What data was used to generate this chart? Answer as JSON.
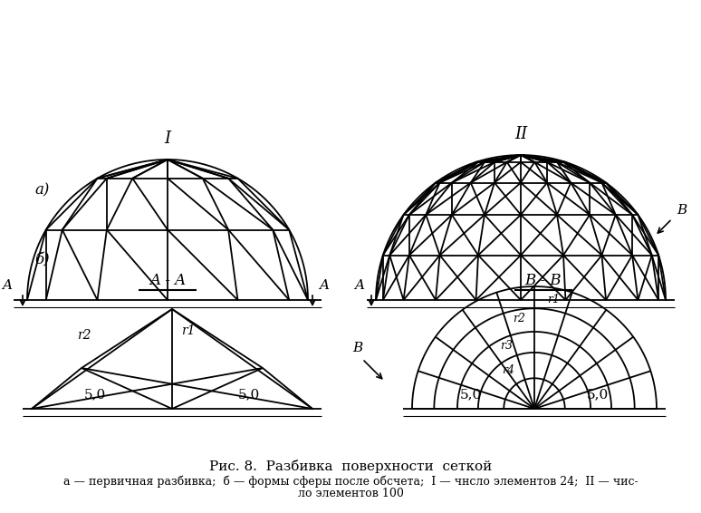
{
  "bg_color": "#ffffff",
  "line_color": "#000000",
  "fig_caption": "Рис. 8.  Разбивка  поверхности  сеткой",
  "caption_sub1": "а — первичная разбивка;  б — формы сферы после обсчета;  I — чнсло элементов 24;  II — чис-",
  "caption_sub2": "ло элементов 100",
  "label_a": "а)",
  "label_b": "б)",
  "label_I": "I",
  "label_II": "II",
  "label_AA": "A - A",
  "label_BB": "B - B",
  "label_A_left": "A",
  "label_A_right": "A",
  "label_B_arrow": "B",
  "label_50_aa1": "5,0",
  "label_50_aa2": "5,0",
  "label_50_bb1": "5,0",
  "label_50_bb2": "5,0",
  "label_r1_aa": "r1",
  "label_r2_aa": "r2",
  "label_r1_bb": "r1",
  "label_r2_bb": "r2",
  "label_r3_bb": "r3",
  "label_r4_bb": "r4"
}
